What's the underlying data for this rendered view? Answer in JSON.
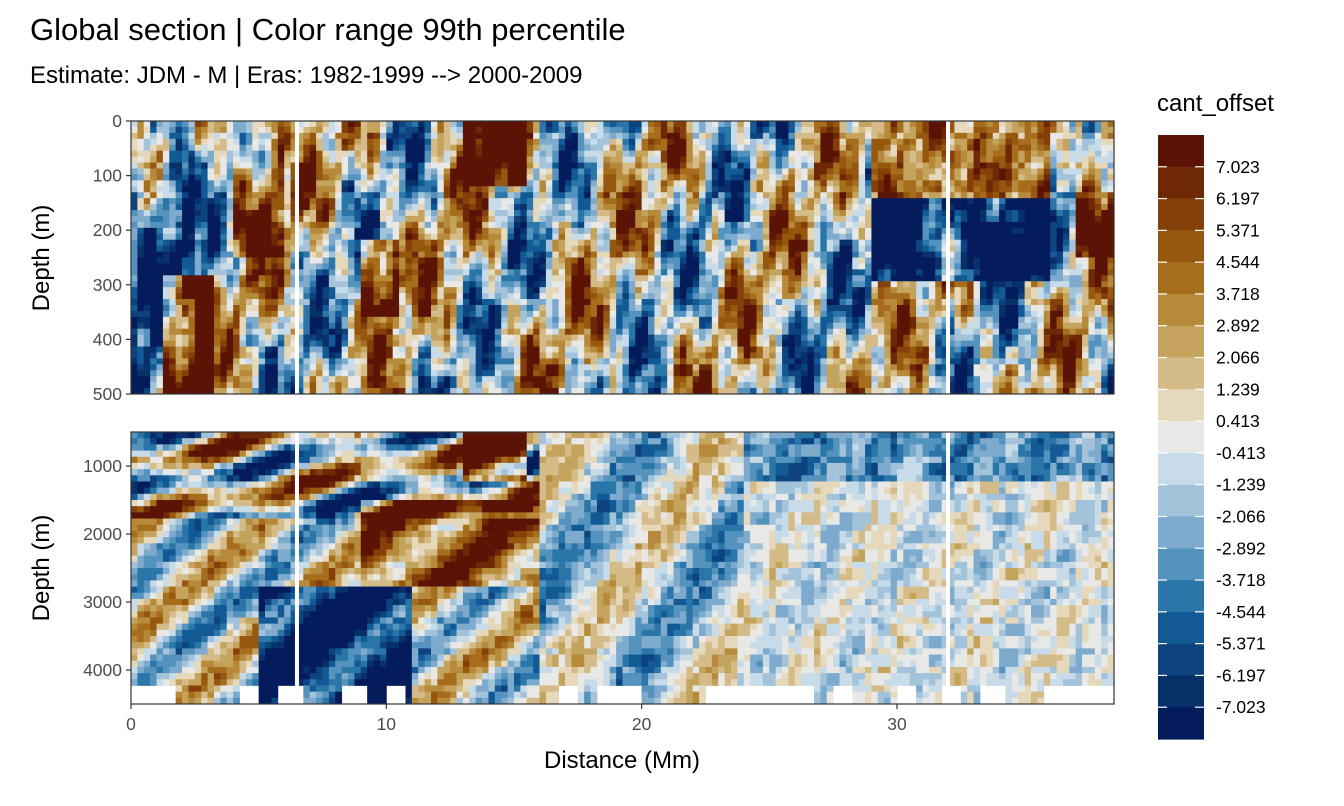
{
  "chart_data": {
    "type": "heatmap",
    "title": "Global section | Color range 99th percentile",
    "subtitle": "Estimate: JDM - M | Eras: 1982-1999 --> 2000-2009",
    "xlabel": "Distance (Mm)",
    "x_ticks": [
      0,
      10,
      20,
      30
    ],
    "xlim": [
      0,
      38.5
    ],
    "legend": {
      "title": "cant_offset",
      "position": "right",
      "labels": [
        "7.023",
        "6.197",
        "5.371",
        "4.544",
        "3.718",
        "2.892",
        "2.066",
        "1.239",
        "0.413",
        "-0.413",
        "-1.239",
        "-2.066",
        "-2.892",
        "-3.718",
        "-4.544",
        "-5.371",
        "-6.197",
        "-7.023"
      ],
      "colors": [
        "#5b1305",
        "#6f2806",
        "#853f09",
        "#96570f",
        "#a66d1d",
        "#b68a3a",
        "#c4a35c",
        "#d4bb87",
        "#e5d8bb",
        "#e8e9e6",
        "#c7dbe9",
        "#a2c3da",
        "#7eabcd",
        "#5493bd",
        "#2b76a8",
        "#125a96",
        "#0d437f",
        "#083069",
        "#041c5c"
      ]
    },
    "panels": [
      {
        "name": "upper",
        "ylabel": "Depth (m)",
        "y_ticks": [
          0,
          100,
          200,
          300,
          400,
          500
        ],
        "ylim": [
          0,
          500
        ]
      },
      {
        "name": "lower",
        "ylabel": "Depth (m)",
        "y_ticks": [
          1000,
          2000,
          3000,
          4000
        ],
        "ylim": [
          500,
          4500
        ]
      }
    ],
    "white_gaps_x": [
      6.5,
      32.0
    ],
    "grid": true
  }
}
